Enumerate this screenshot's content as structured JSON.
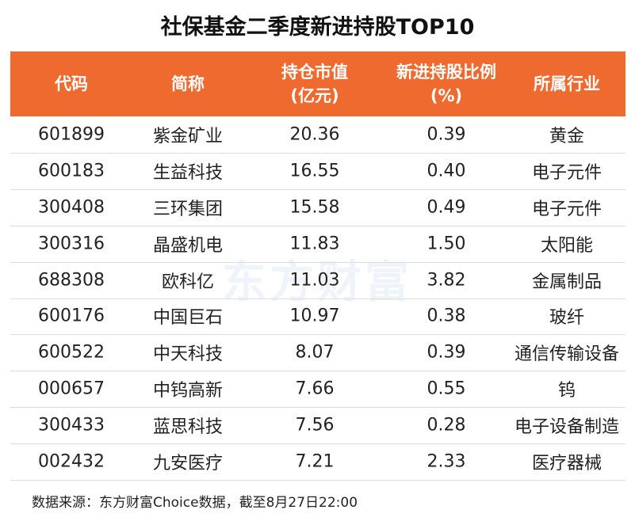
{
  "title": "社保基金二季度新进持股TOP10",
  "table": {
    "header": [
      [
        "代码"
      ],
      [
        "简称"
      ],
      [
        "持仓市值",
        "(亿元)"
      ],
      [
        "新进持股比例",
        "(%)"
      ],
      [
        "所属行业"
      ]
    ],
    "rows": [
      [
        "601899",
        "紫金矿业",
        "20.36",
        "0.39",
        "黄金"
      ],
      [
        "600183",
        "生益科技",
        "16.55",
        "0.40",
        "电子元件"
      ],
      [
        "300408",
        "三环集团",
        "15.58",
        "0.49",
        "电子元件"
      ],
      [
        "300316",
        "晶盛机电",
        "11.83",
        "1.50",
        "太阳能"
      ],
      [
        "688308",
        "欧科亿",
        "11.03",
        "3.82",
        "金属制品"
      ],
      [
        "600176",
        "中国巨石",
        "10.97",
        "0.38",
        "玻纤"
      ],
      [
        "600522",
        "中天科技",
        "8.07",
        "0.39",
        "通信传输设备"
      ],
      [
        "000657",
        "中钨高新",
        "7.66",
        "0.55",
        "钨"
      ],
      [
        "300433",
        "蓝思科技",
        "7.56",
        "0.28",
        "电子设备制造"
      ],
      [
        "002432",
        "九安医疗",
        "7.21",
        "2.33",
        "医疗器械"
      ]
    ]
  },
  "watermark": "东方财富",
  "footer": "数据来源：东方财富Choice数据，截至8月27日22:00"
}
